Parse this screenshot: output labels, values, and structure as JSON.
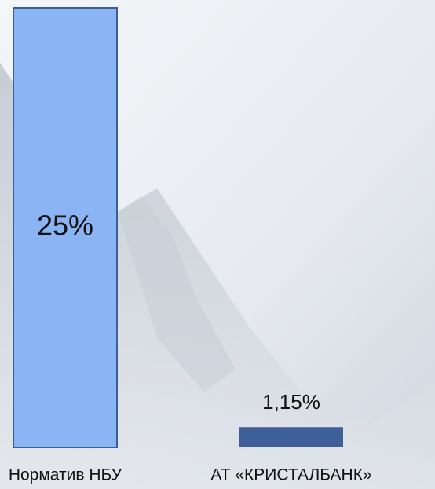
{
  "chart_data": {
    "type": "bar",
    "categories": [
      "Норматив НБУ",
      "АТ «КРИСТАЛБАНК»"
    ],
    "values": [
      25,
      1.15
    ],
    "value_labels": [
      "25%",
      "1,15%"
    ],
    "colors": [
      "#8ab4f4",
      "#3e5f97"
    ],
    "ylim": [
      0,
      25
    ]
  }
}
